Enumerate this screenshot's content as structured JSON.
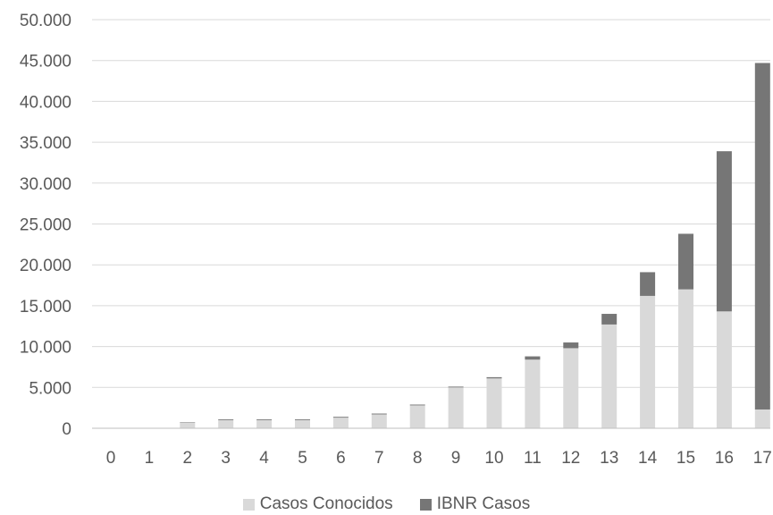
{
  "chart_data": {
    "type": "bar",
    "stacked": true,
    "categories": [
      "0",
      "1",
      "2",
      "3",
      "4",
      "5",
      "6",
      "7",
      "8",
      "9",
      "10",
      "11",
      "12",
      "13",
      "14",
      "15",
      "16",
      "17"
    ],
    "series": [
      {
        "name": "Casos Conocidos",
        "color": "#d9d9d9",
        "values": [
          0,
          50,
          700,
          1000,
          1000,
          1000,
          1300,
          1700,
          2800,
          5000,
          6100,
          8400,
          9800,
          12700,
          16200,
          17000,
          14300,
          2300
        ]
      },
      {
        "name": "IBNR Casos",
        "color": "#767676",
        "values": [
          0,
          0,
          50,
          100,
          100,
          100,
          100,
          100,
          100,
          100,
          150,
          400,
          700,
          1300,
          2900,
          6800,
          19600,
          42400
        ]
      }
    ],
    "yticks": [
      "0",
      "5.000",
      "10.000",
      "15.000",
      "20.000",
      "25.000",
      "30.000",
      "35.000",
      "40.000",
      "45.000",
      "50.000"
    ],
    "ylim": [
      0,
      50000
    ],
    "grid": true,
    "legend_position": "bottom"
  }
}
